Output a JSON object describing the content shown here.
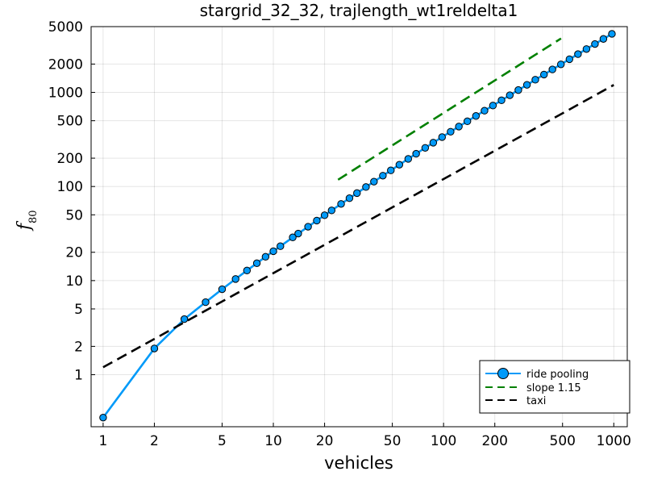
{
  "chart_data": {
    "type": "line",
    "title": "stargrid_32_32, trajlength_wt1reldelta1",
    "xlabel": "vehicles",
    "ylabel": "f",
    "ylabel_subscript": "80",
    "x_scale": "log",
    "y_scale": "log",
    "xlim": [
      0.85,
      1200
    ],
    "ylim": [
      0.28,
      5000
    ],
    "x_ticks": [
      1,
      2,
      5,
      10,
      20,
      50,
      100,
      200,
      500,
      1000
    ],
    "x_tick_labels": [
      "1",
      "2",
      "5",
      "10",
      "20",
      "50",
      "100",
      "200",
      "500",
      "1000"
    ],
    "y_ticks": [
      1,
      2,
      5,
      10,
      20,
      50,
      100,
      200,
      500,
      1000,
      2000,
      5000
    ],
    "y_tick_labels": [
      "1",
      "2",
      "5",
      "10",
      "20",
      "50",
      "100",
      "200",
      "500",
      "1000",
      "2000",
      "5000"
    ],
    "grid": true,
    "legend_position": "bottom-right",
    "series": [
      {
        "name": "ride pooling",
        "style": "line-markers",
        "color": "#009AF9",
        "x": [
          1,
          2,
          3,
          4,
          5,
          6,
          7,
          8,
          9,
          10,
          11,
          13,
          14,
          16,
          18,
          20,
          22,
          25,
          28,
          31,
          35,
          39,
          44,
          49,
          55,
          62,
          69,
          78,
          87,
          98,
          110,
          123,
          138,
          155,
          174,
          195,
          219,
          245,
          275,
          309,
          346,
          389,
          436,
          489,
          549,
          616,
          691,
          775,
          869,
          975
        ],
        "y": [
          0.35,
          1.9,
          3.9,
          5.9,
          8.1,
          10.4,
          12.8,
          15.3,
          17.9,
          20.5,
          23.2,
          28.8,
          31.6,
          37.4,
          43.4,
          49.5,
          55.7,
          65.3,
          75.1,
          85.1,
          98.7,
          112.6,
          130.3,
          148.3,
          170.4,
          196.5,
          222.9,
          257.4,
          292.2,
          335.0,
          382.1,
          433.6,
          493.4,
          561.8,
          638.9,
          724.7,
          824.4,
          932.9,
          1059,
          1203,
          1363,
          1548,
          1753,
          1986,
          2252,
          2551,
          2889,
          3270,
          3701,
          4190
        ]
      },
      {
        "name": "slope 1.15",
        "style": "dashed",
        "color": "#008000",
        "x": [
          24,
          490
        ],
        "y": [
          118,
          3740
        ]
      },
      {
        "name": "taxi",
        "style": "dashed",
        "color": "#000000",
        "x": [
          1,
          1000
        ],
        "y": [
          1.2,
          1200
        ]
      }
    ]
  }
}
